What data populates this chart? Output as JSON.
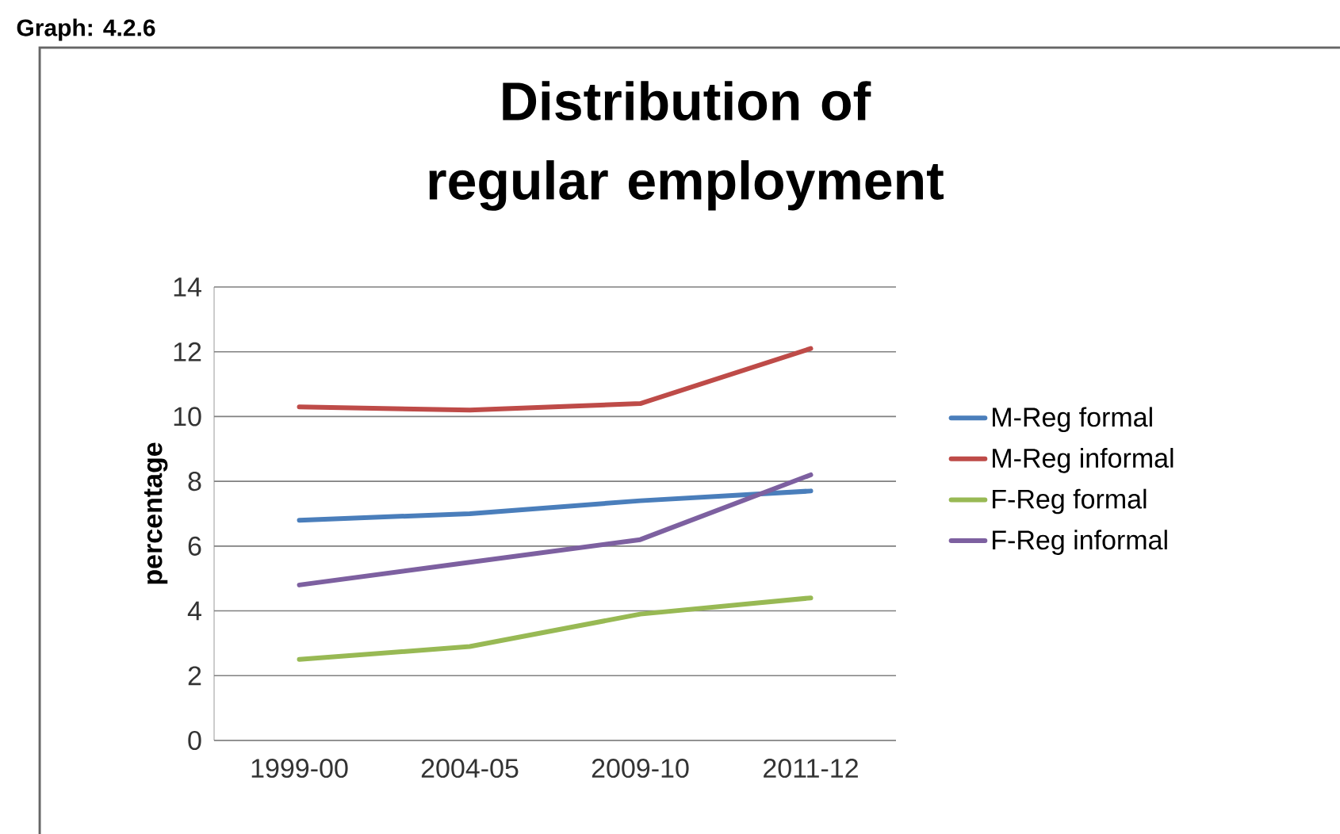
{
  "chart_data": {
    "type": "line",
    "title": "Distribution of regular employment",
    "ylabel": "percentage",
    "annotations": [
      "Graph: 4.2.6"
    ],
    "categories": [
      "1999-00",
      "2004-05",
      "2009-10",
      "2011-12"
    ],
    "series": [
      {
        "name": "M-Reg formal",
        "color": "#4a7ebb",
        "values": [
          6.8,
          7.0,
          7.4,
          7.7
        ]
      },
      {
        "name": "M-Reg informal",
        "color": "#be4b48",
        "values": [
          10.3,
          10.2,
          10.4,
          12.1
        ]
      },
      {
        "name": "F-Reg formal",
        "color": "#98b954",
        "values": [
          2.5,
          2.9,
          3.9,
          4.4
        ]
      },
      {
        "name": "F-Reg informal",
        "color": "#7d60a0",
        "values": [
          4.8,
          5.5,
          6.2,
          8.2
        ]
      }
    ],
    "ylim": [
      0,
      14
    ],
    "yticks": [
      0,
      2,
      4,
      6,
      8,
      10,
      12,
      14
    ],
    "grid": "y",
    "legend": "right",
    "marker": "none",
    "line_style": "solid"
  }
}
